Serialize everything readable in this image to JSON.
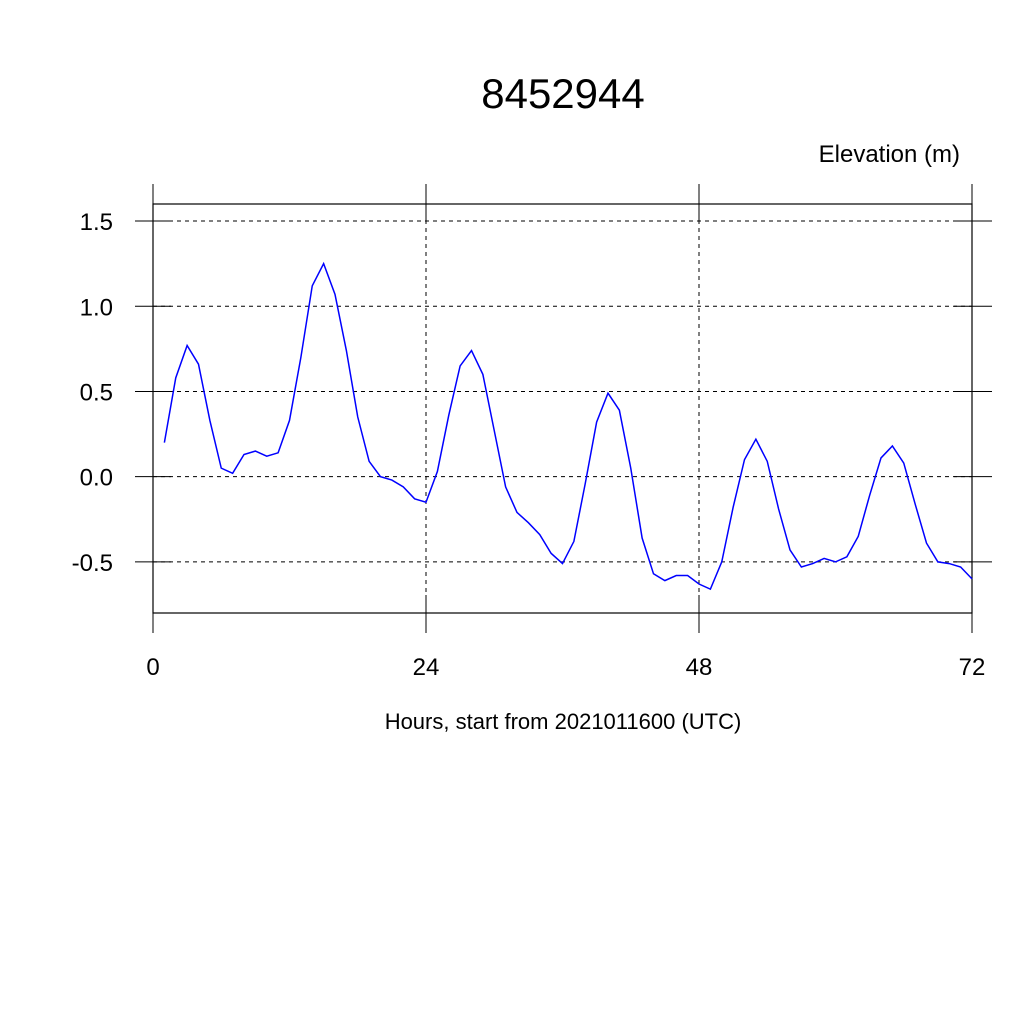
{
  "chart_data": {
    "type": "line",
    "title": "8452944",
    "subtitle": "Elevation (m)",
    "x_label": "Hours, start from 2021011600 (UTC)",
    "x": [
      1,
      2,
      3,
      4,
      5,
      6,
      7,
      8,
      9,
      10,
      11,
      12,
      13,
      14,
      15,
      16,
      17,
      18,
      19,
      20,
      21,
      22,
      23,
      24,
      25,
      26,
      27,
      28,
      29,
      30,
      31,
      32,
      33,
      34,
      35,
      36,
      37,
      38,
      39,
      40,
      41,
      42,
      43,
      44,
      45,
      46,
      47,
      48,
      49,
      50,
      51,
      52,
      53,
      54,
      55,
      56,
      57,
      58,
      59,
      60,
      61,
      62,
      63,
      64,
      65,
      66,
      67,
      68,
      69,
      70,
      71,
      72
    ],
    "series": [
      {
        "color": "#0000ff",
        "values": [
          0.2,
          0.58,
          0.77,
          0.66,
          0.33,
          0.05,
          0.02,
          0.13,
          0.15,
          0.12,
          0.14,
          0.33,
          0.7,
          1.12,
          1.25,
          1.07,
          0.74,
          0.35,
          0.09,
          0.0,
          -0.02,
          -0.06,
          -0.13,
          -0.15,
          0.03,
          0.36,
          0.65,
          0.74,
          0.6,
          0.27,
          -0.06,
          -0.21,
          -0.27,
          -0.34,
          -0.45,
          -0.51,
          -0.38,
          -0.04,
          0.32,
          0.49,
          0.39,
          0.05,
          -0.36,
          -0.57,
          -0.61,
          -0.58,
          -0.58,
          -0.63,
          -0.66,
          -0.5,
          -0.18,
          0.1,
          0.22,
          0.09,
          -0.19,
          -0.43,
          -0.53,
          -0.51,
          -0.48,
          -0.5,
          -0.47,
          -0.35,
          -0.11,
          0.11,
          0.18,
          0.08,
          -0.16,
          -0.39,
          -0.5,
          -0.51,
          -0.53,
          -0.6
        ]
      }
    ],
    "xlim": [
      0,
      72
    ],
    "xticks": [
      0,
      24,
      48,
      72
    ],
    "ylim": [
      -0.8,
      1.6
    ],
    "yticks": [
      -0.5,
      {
        "value": 0,
        "label": "0.0"
      },
      0.5,
      {
        "value": 1,
        "label": "1.0"
      },
      1.5
    ],
    "grid": true
  }
}
